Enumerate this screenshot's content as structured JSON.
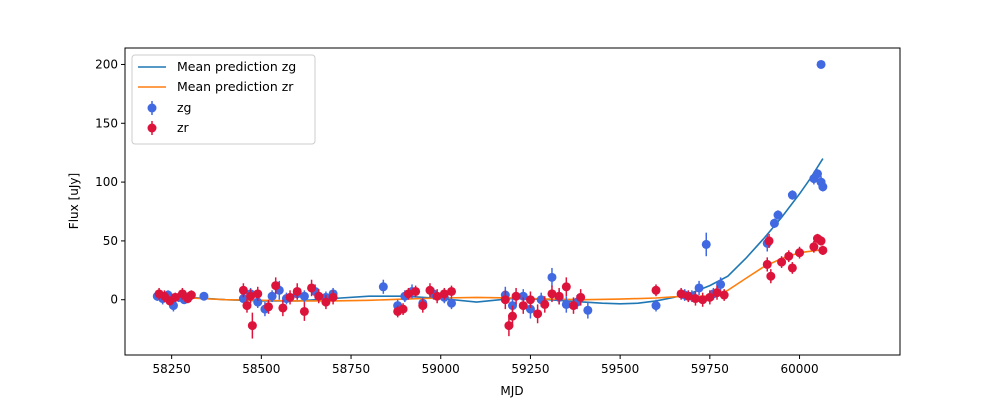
{
  "chart_data": {
    "type": "scatter",
    "title": "",
    "xlabel": "MJD",
    "ylabel": "Flux [uJy]",
    "xlim": [
      58120,
      60280
    ],
    "ylim": [
      -47,
      214
    ],
    "xticks": [
      58250,
      58500,
      58750,
      59000,
      59250,
      59500,
      59750,
      60000
    ],
    "yticks": [
      0,
      50,
      100,
      150,
      200
    ],
    "grid": false,
    "legend_position": "top-left",
    "series": [
      {
        "name": "Mean prediction zg",
        "kind": "line",
        "color": "#1f77b4",
        "x": [
          58210,
          58300,
          58400,
          58500,
          58600,
          58700,
          58800,
          58900,
          59000,
          59100,
          59200,
          59300,
          59400,
          59450,
          59500,
          59550,
          59600,
          59650,
          59700,
          59750,
          59800,
          59850,
          59900,
          59950,
          60000,
          60030,
          60065
        ],
        "y": [
          3,
          2,
          0,
          -1,
          -1,
          1,
          3,
          3,
          1,
          -2,
          1,
          0,
          -2,
          -3,
          -3.5,
          -3,
          -1,
          2,
          6,
          12,
          20,
          35,
          52,
          70,
          90,
          103,
          120
        ]
      },
      {
        "name": "Mean prediction zr",
        "kind": "line",
        "color": "#ff7f0e",
        "x": [
          58210,
          58300,
          58400,
          58500,
          58600,
          58700,
          58800,
          58900,
          59000,
          59100,
          59200,
          59300,
          59400,
          59500,
          59600,
          59650,
          59700,
          59750,
          59780,
          59800,
          59850,
          59900,
          59950,
          60000,
          60050,
          60065
        ],
        "y": [
          2,
          1.5,
          0,
          -0.5,
          -1,
          -1,
          -0.5,
          0.5,
          1.5,
          2,
          1.5,
          0.5,
          0,
          0.5,
          1.5,
          2.5,
          3,
          3,
          5,
          8,
          18,
          28,
          35,
          40,
          42,
          43
        ]
      },
      {
        "name": "zg",
        "kind": "errorbar",
        "color": "#4169e1",
        "x": [
          58210,
          58225,
          58240,
          58255,
          58270,
          58285,
          58300,
          58340,
          58450,
          58470,
          58490,
          58510,
          58530,
          58550,
          58570,
          58600,
          58620,
          58650,
          58680,
          58700,
          58840,
          58880,
          58900,
          58920,
          58950,
          58980,
          59010,
          59030,
          59180,
          59200,
          59230,
          59250,
          59280,
          59310,
          59330,
          59350,
          59380,
          59410,
          59600,
          59680,
          59700,
          59720,
          59740,
          59760,
          59780,
          59910,
          59930,
          59940,
          59980,
          60040,
          60050,
          60060,
          60065,
          60060
        ],
        "y": [
          3,
          1,
          4,
          -5,
          2,
          0,
          3,
          3,
          1,
          5,
          -2,
          -8,
          3,
          8,
          1,
          5,
          3,
          7,
          2,
          5,
          11,
          -5,
          3,
          7,
          -3,
          5,
          2,
          -3,
          4,
          -5,
          3,
          -8,
          0,
          19,
          2,
          -4,
          -2,
          -9,
          -5,
          4,
          3,
          10,
          47,
          5,
          13,
          48,
          65,
          72,
          89,
          103,
          107,
          100,
          96,
          200
        ],
        "yerr": [
          4,
          5,
          4,
          5,
          4,
          3,
          4,
          3,
          4,
          5,
          5,
          6,
          5,
          8,
          5,
          5,
          5,
          6,
          5,
          5,
          6,
          5,
          5,
          6,
          5,
          5,
          5,
          5,
          7,
          6,
          6,
          8,
          6,
          8,
          6,
          7,
          6,
          7,
          5,
          5,
          5,
          6,
          10,
          5,
          6,
          7,
          4,
          4,
          4,
          5,
          4,
          5,
          4,
          3
        ]
      },
      {
        "name": "zr",
        "kind": "errorbar",
        "color": "#dc143c",
        "x": [
          58215,
          58230,
          58245,
          58260,
          58280,
          58295,
          58305,
          58450,
          58460,
          58470,
          58475,
          58490,
          58520,
          58540,
          58560,
          58580,
          58600,
          58620,
          58640,
          58660,
          58680,
          58700,
          58880,
          58895,
          58910,
          58930,
          58950,
          58970,
          58990,
          59010,
          59030,
          59180,
          59190,
          59200,
          59210,
          59230,
          59250,
          59270,
          59290,
          59310,
          59330,
          59350,
          59370,
          59390,
          59600,
          59670,
          59690,
          59710,
          59730,
          59750,
          59770,
          59790,
          59910,
          59915,
          59920,
          59950,
          59970,
          59980,
          60000,
          60040,
          60050,
          60060,
          60065
        ],
        "y": [
          5,
          3,
          -1,
          2,
          5,
          1,
          4,
          8,
          -5,
          3,
          -22,
          5,
          -6,
          12,
          -7,
          2,
          7,
          -10,
          10,
          3,
          -2,
          2,
          -10,
          -8,
          5,
          7,
          -5,
          8,
          3,
          5,
          7,
          0,
          -22,
          -14,
          3,
          -5,
          0,
          -12,
          -4,
          5,
          3,
          11,
          -5,
          2,
          8,
          5,
          3,
          1,
          0,
          2,
          6,
          4,
          30,
          50,
          20,
          32,
          37,
          27,
          40,
          45,
          52,
          50,
          42
        ],
        "yerr": [
          5,
          5,
          4,
          4,
          5,
          4,
          4,
          6,
          6,
          6,
          11,
          6,
          6,
          7,
          7,
          6,
          7,
          8,
          7,
          6,
          6,
          6,
          5,
          5,
          5,
          5,
          6,
          6,
          6,
          5,
          5,
          8,
          9,
          9,
          7,
          7,
          7,
          8,
          7,
          7,
          7,
          8,
          7,
          7,
          5,
          5,
          5,
          6,
          6,
          6,
          6,
          5,
          6,
          6,
          6,
          5,
          5,
          5,
          5,
          5,
          4,
          4,
          4
        ]
      }
    ]
  }
}
